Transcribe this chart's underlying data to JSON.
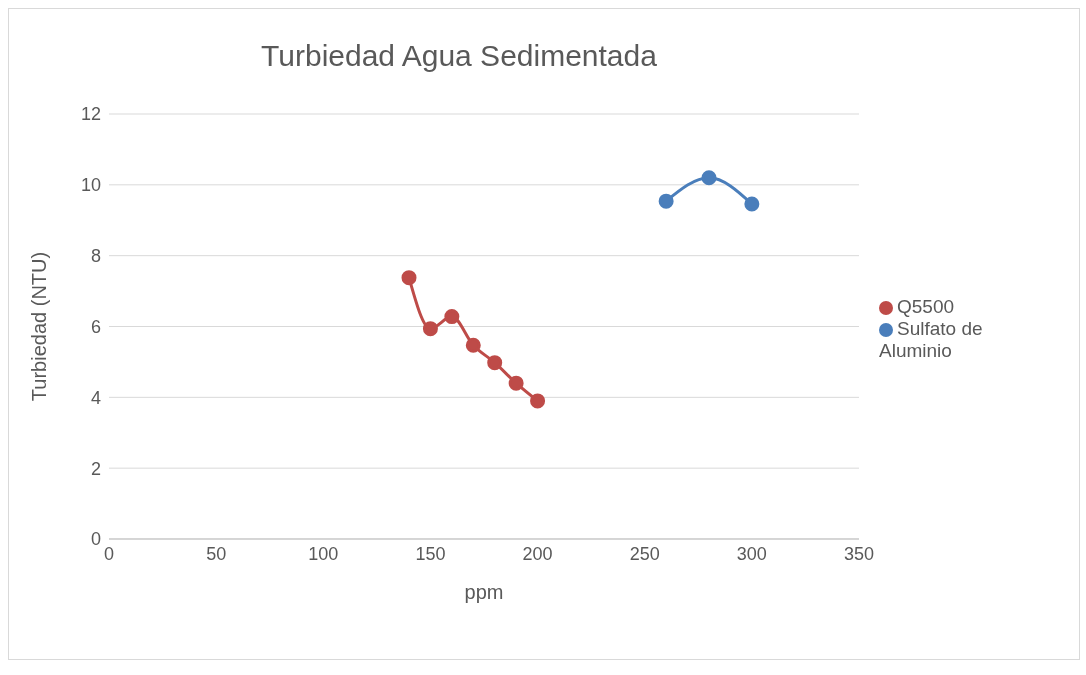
{
  "chart_data": {
    "type": "line",
    "title": "Turbiedad Agua Sedimentada",
    "xlabel": "ppm",
    "ylabel": "Turbiedad (NTU)",
    "series": [
      {
        "name": "Sulfato de Aluminio",
        "color": "#4a7ebb",
        "x": [
          260,
          280,
          300
        ],
        "values": [
          9.54,
          10.2,
          9.46
        ]
      },
      {
        "name": "Q5500",
        "color": "#be4b48",
        "x": [
          140,
          150,
          160,
          170,
          180,
          190,
          200
        ],
        "values": [
          7.38,
          5.94,
          6.28,
          5.47,
          4.98,
          4.4,
          3.9
        ]
      }
    ],
    "xlim": [
      0,
      350
    ],
    "xticks": [
      0,
      50,
      100,
      150,
      200,
      250,
      300,
      350
    ],
    "ylim": [
      0,
      12
    ],
    "yticks": [
      0,
      2,
      4,
      6,
      8,
      10,
      12
    ],
    "grid": "y",
    "legend": "right",
    "marker": "circle"
  }
}
